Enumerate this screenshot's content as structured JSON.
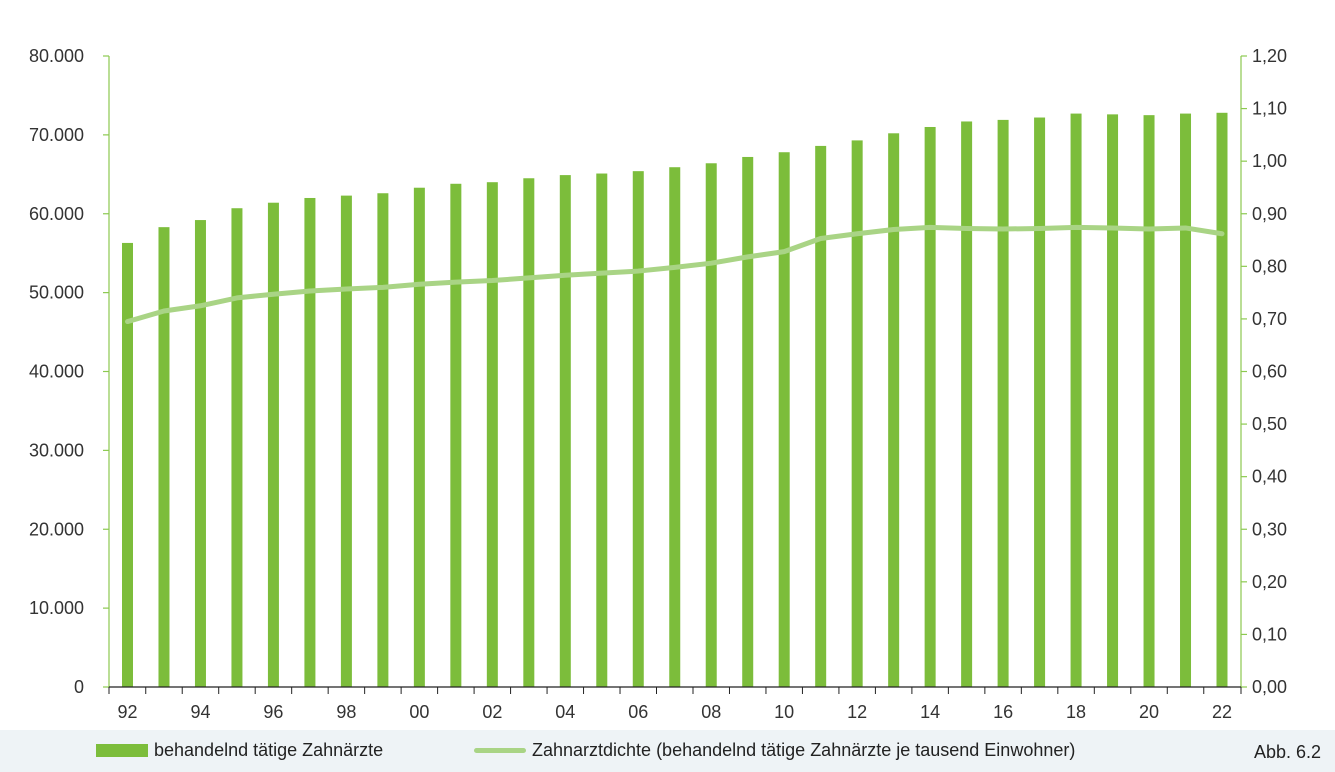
{
  "figure_label": "Abb. 6.2",
  "colors": {
    "bars": "#7cbd3b",
    "line": "#a9d485",
    "axis": "#8cc94f"
  },
  "chart_data": {
    "type": "bar",
    "categories": [
      "92",
      "93",
      "94",
      "95",
      "96",
      "97",
      "98",
      "99",
      "00",
      "01",
      "02",
      "03",
      "04",
      "05",
      "06",
      "07",
      "08",
      "09",
      "10",
      "11",
      "12",
      "13",
      "14",
      "15",
      "16",
      "17",
      "18",
      "19",
      "20",
      "21",
      "22"
    ],
    "x_tick_labels": [
      "92",
      "94",
      "96",
      "98",
      "00",
      "02",
      "04",
      "06",
      "08",
      "10",
      "12",
      "14",
      "16",
      "18",
      "20",
      "22"
    ],
    "series": [
      {
        "name": "behandelnd tätige Zahnärzte",
        "type": "bar",
        "axis": "left",
        "values": [
          56300,
          58300,
          59200,
          60700,
          61400,
          62000,
          62300,
          62600,
          63300,
          63800,
          64000,
          64500,
          64900,
          65100,
          65400,
          65900,
          66400,
          67200,
          67800,
          68600,
          69300,
          70200,
          71000,
          71700,
          71900,
          72200,
          72700,
          72600,
          72500,
          72700,
          72800
        ]
      },
      {
        "name": "Zahnarztdichte (behandelnd tätige Zahnärzte je tausend Einwohner)",
        "type": "line",
        "axis": "right",
        "values": [
          0.695,
          0.715,
          0.725,
          0.74,
          0.747,
          0.753,
          0.757,
          0.76,
          0.766,
          0.77,
          0.773,
          0.778,
          0.783,
          0.787,
          0.791,
          0.798,
          0.806,
          0.818,
          0.828,
          0.853,
          0.862,
          0.87,
          0.874,
          0.872,
          0.871,
          0.872,
          0.874,
          0.873,
          0.871,
          0.873,
          0.862
        ]
      }
    ],
    "y_left": {
      "ylim": [
        0,
        80000
      ],
      "ticks": [
        "0",
        "10.000",
        "20.000",
        "30.000",
        "40.000",
        "50.000",
        "60.000",
        "70.000",
        "80.000"
      ]
    },
    "y_right": {
      "ylim": [
        0,
        1.2
      ],
      "ticks": [
        "0,00",
        "0,10",
        "0,20",
        "0,30",
        "0,40",
        "0,50",
        "0,60",
        "0,70",
        "0,80",
        "0,90",
        "1,00",
        "1,10",
        "1,20"
      ]
    },
    "grid": false,
    "legend_position": "bottom"
  }
}
